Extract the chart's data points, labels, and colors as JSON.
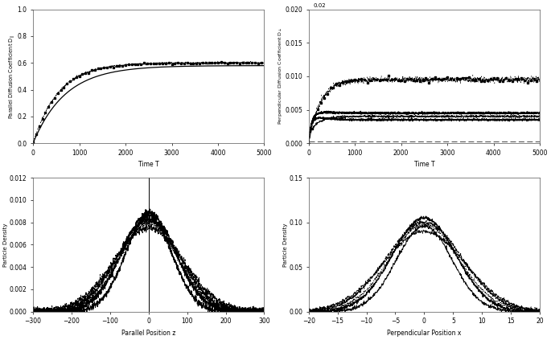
{
  "fig_bg": "#ffffff",
  "ax_bg": "#ffffff",
  "text_color": "#000000",
  "line_color": "#000000",
  "top_left": {
    "xlabel": "Time T",
    "ylabel": "Parallel Diffusion Coefficient D_||",
    "xlim": [
      0,
      5000
    ],
    "ylim": [
      0,
      1
    ],
    "yticks": [
      0,
      0.2,
      0.4,
      0.6,
      0.8,
      1
    ],
    "xticks": [
      0,
      1000,
      2000,
      3000,
      4000,
      5000
    ],
    "asymptote": 0.58
  },
  "top_right": {
    "xlabel": "Time T",
    "ylabel": "Perpendicular Diffusion Coefficient D_perp",
    "xlim": [
      0,
      5000
    ],
    "ylim": [
      0,
      0.02
    ],
    "yticks": [
      0,
      0.005,
      0.01,
      0.015,
      0.02
    ],
    "xticks": [
      0,
      1000,
      2000,
      3000,
      4000,
      5000
    ],
    "asymptote_high": 0.0095,
    "asymptote_low": 0.0045
  },
  "bottom_left": {
    "xlabel": "Parallel Position z",
    "ylabel": "Particle Density",
    "xlim": [
      -300,
      300
    ],
    "ylim": [
      0,
      0.012
    ],
    "yticks": [
      0,
      0.002,
      0.004,
      0.006,
      0.008,
      0.01,
      0.012
    ],
    "xticks": [
      -300,
      -200,
      -100,
      0,
      100,
      200,
      300
    ]
  },
  "bottom_right": {
    "xlabel": "Perpendicular Position x",
    "ylabel": "Particle Density",
    "xlim": [
      -20,
      20
    ],
    "ylim": [
      0,
      0.15
    ],
    "yticks": [
      0,
      0.05,
      0.1,
      0.15
    ],
    "xticks": [
      -20,
      -15,
      -10,
      -5,
      0,
      5,
      10,
      15,
      20
    ]
  }
}
